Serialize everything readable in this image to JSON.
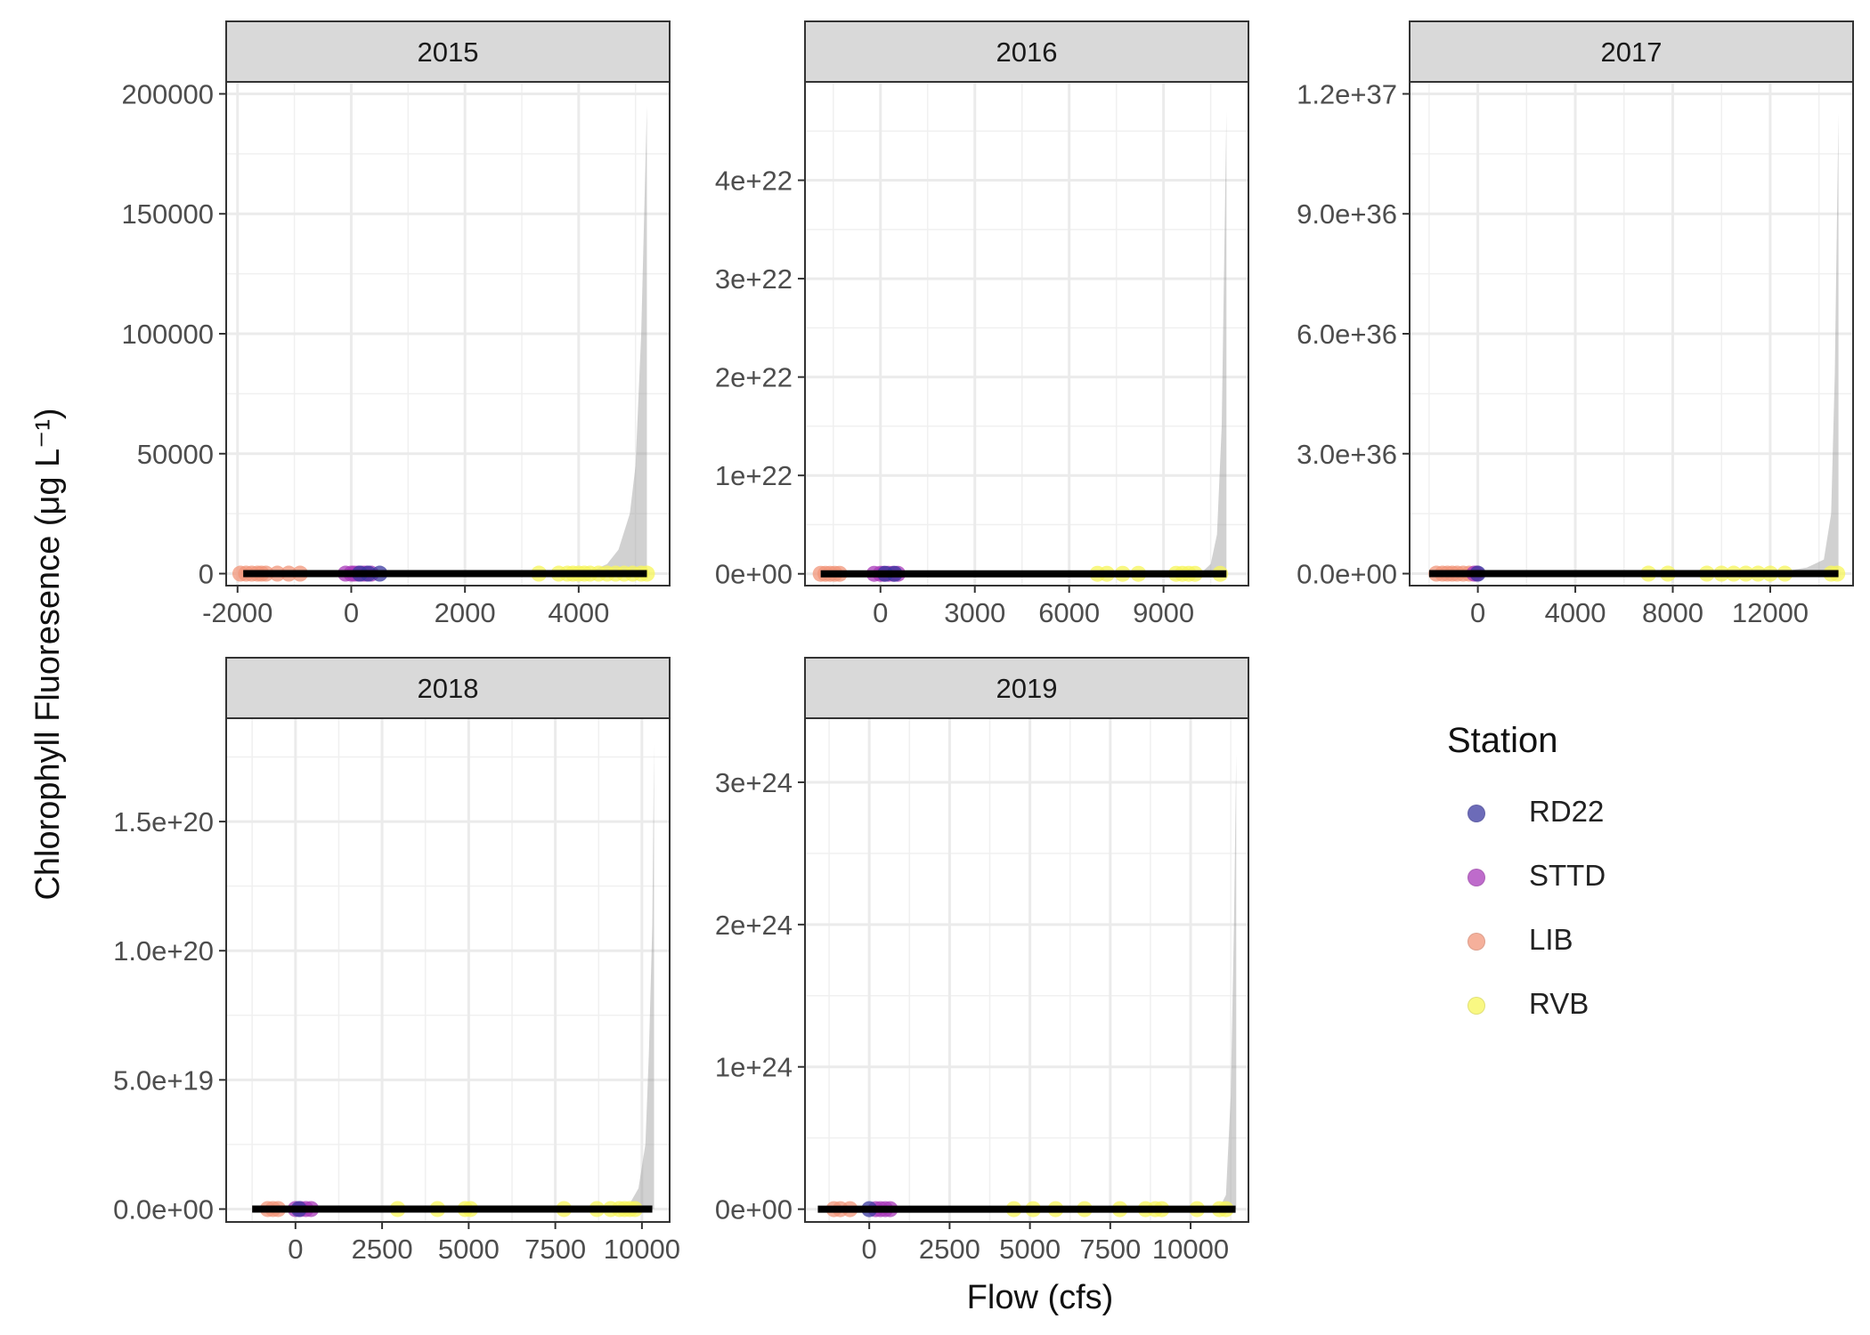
{
  "ylabel": "Chlorophyll Fluoresence (μg L⁻¹)",
  "xlabel": "Flow (cfs)",
  "legend": {
    "title": "Station",
    "items": [
      {
        "label": "RD22",
        "color": "#3b3aa0"
      },
      {
        "label": "STTD",
        "color": "#a83aba"
      },
      {
        "label": "LIB",
        "color": "#f2957a"
      },
      {
        "label": "RVB",
        "color": "#f7f65a"
      }
    ]
  },
  "chart_data": [
    {
      "type": "scatter",
      "title": "2015",
      "xlim": [
        -2200,
        5600
      ],
      "ylim": [
        -5000,
        205000
      ],
      "x_ticks": [
        -2000,
        0,
        2000,
        4000
      ],
      "x_tick_labels": [
        "-2000",
        "0",
        "2000",
        "4000"
      ],
      "y_ticks": [
        0,
        50000,
        100000,
        150000,
        200000
      ],
      "y_tick_labels": [
        "0",
        "50000",
        "100000",
        "150000",
        "200000"
      ],
      "fit": {
        "x_start": -1900,
        "x_end": 5200
      },
      "ribbon": {
        "x_start": 4200,
        "upper": [
          [
            4200,
            800
          ],
          [
            4500,
            4000
          ],
          [
            4700,
            10000
          ],
          [
            4900,
            25000
          ],
          [
            5000,
            45000
          ],
          [
            5100,
            100000
          ],
          [
            5200,
            195000
          ]
        ]
      },
      "points": {
        "RD22": [
          [
            150,
            0
          ],
          [
            300,
            0
          ],
          [
            500,
            0
          ]
        ],
        "STTD": [
          [
            -100,
            0
          ],
          [
            0,
            0
          ],
          [
            50,
            0
          ],
          [
            120,
            0
          ],
          [
            200,
            0
          ],
          [
            260,
            0
          ],
          [
            350,
            0
          ]
        ],
        "LIB": [
          [
            -1950,
            0
          ],
          [
            -1850,
            0
          ],
          [
            -1750,
            0
          ],
          [
            -1650,
            0
          ],
          [
            -1580,
            0
          ],
          [
            -1500,
            0
          ],
          [
            -1300,
            0
          ],
          [
            -1100,
            0
          ],
          [
            -900,
            0
          ]
        ],
        "RVB": [
          [
            3300,
            0
          ],
          [
            3650,
            0
          ],
          [
            3800,
            0
          ],
          [
            3900,
            0
          ],
          [
            4000,
            0
          ],
          [
            4100,
            0
          ],
          [
            4200,
            0
          ],
          [
            4350,
            0
          ],
          [
            4500,
            0
          ],
          [
            4650,
            0
          ],
          [
            4800,
            0
          ],
          [
            4950,
            0
          ],
          [
            5100,
            0
          ],
          [
            5200,
            0
          ]
        ]
      }
    },
    {
      "type": "scatter",
      "title": "2016",
      "xlim": [
        -2400,
        11700
      ],
      "ylim": [
        -1.2e+21,
        5e+22
      ],
      "x_ticks": [
        0,
        3000,
        6000,
        9000
      ],
      "x_tick_labels": [
        "0",
        "3000",
        "6000",
        "9000"
      ],
      "y_ticks": [
        0,
        1e+22,
        2e+22,
        3e+22,
        4e+22
      ],
      "y_tick_labels": [
        "0e+00",
        "1e+22",
        "2e+22",
        "3e+22",
        "4e+22"
      ],
      "fit": {
        "x_start": -1900,
        "x_end": 11000
      },
      "ribbon": {
        "x_start": 10200,
        "upper": [
          [
            10200,
            1e+20
          ],
          [
            10500,
            1e+21
          ],
          [
            10700,
            4e+21
          ],
          [
            10850,
            1.5e+22
          ],
          [
            11000,
            4.7e+22
          ]
        ]
      },
      "points": {
        "RD22": [
          [
            150,
            0
          ],
          [
            450,
            0
          ]
        ],
        "STTD": [
          [
            -200,
            0
          ],
          [
            0,
            0
          ],
          [
            100,
            0
          ],
          [
            250,
            0
          ],
          [
            400,
            0
          ],
          [
            550,
            0
          ]
        ],
        "LIB": [
          [
            -1900,
            0
          ],
          [
            -1750,
            0
          ],
          [
            -1600,
            0
          ],
          [
            -1450,
            0
          ],
          [
            -1300,
            0
          ]
        ],
        "RVB": [
          [
            6900,
            0
          ],
          [
            7200,
            0
          ],
          [
            7700,
            0
          ],
          [
            8200,
            0
          ],
          [
            9400,
            0
          ],
          [
            9600,
            0
          ],
          [
            9800,
            0
          ],
          [
            10000,
            0
          ],
          [
            10800,
            0
          ]
        ]
      }
    },
    {
      "type": "scatter",
      "title": "2017",
      "xlim": [
        -2800,
        15400
      ],
      "ylim": [
        -3e+35,
        1.23e+37
      ],
      "x_ticks": [
        0,
        4000,
        8000,
        12000
      ],
      "x_tick_labels": [
        "0",
        "4000",
        "8000",
        "12000"
      ],
      "y_ticks": [
        0,
        3e+36,
        6e+36,
        9e+36,
        1.2e+37
      ],
      "y_tick_labels": [
        "0.0e+00",
        "3.0e+36",
        "6.0e+36",
        "9.0e+36",
        "1.2e+37"
      ],
      "fit": {
        "x_start": -2000,
        "x_end": 14800
      },
      "ribbon": {
        "x_start": 12500,
        "upper": [
          [
            12500,
            5e+34
          ],
          [
            13500,
            1.5e+35
          ],
          [
            14200,
            3.5e+35
          ],
          [
            14500,
            1.5e+36
          ],
          [
            14650,
            5e+36
          ],
          [
            14800,
            1.15e+37
          ]
        ]
      },
      "points": {
        "RD22": [
          [
            0,
            0
          ]
        ],
        "STTD": [
          [
            -150,
            0
          ],
          [
            -50,
            0
          ]
        ],
        "LIB": [
          [
            -1700,
            0
          ],
          [
            -1450,
            0
          ],
          [
            -1250,
            0
          ],
          [
            -1050,
            0
          ],
          [
            -850,
            0
          ],
          [
            -600,
            0
          ],
          [
            -350,
            0
          ]
        ],
        "RVB": [
          [
            7000,
            0
          ],
          [
            7800,
            0
          ],
          [
            9400,
            0
          ],
          [
            10000,
            0
          ],
          [
            10500,
            0
          ],
          [
            11000,
            0
          ],
          [
            11500,
            0
          ],
          [
            12000,
            0
          ],
          [
            12600,
            0
          ],
          [
            14500,
            0
          ],
          [
            14750,
            0
          ]
        ]
      }
    },
    {
      "type": "scatter",
      "title": "2018",
      "xlim": [
        -2000,
        10800
      ],
      "ylim": [
        -5e+18,
        1.9e+20
      ],
      "x_ticks": [
        0,
        2500,
        5000,
        7500,
        10000
      ],
      "x_tick_labels": [
        "0",
        "2500",
        "5000",
        "7500",
        "10000"
      ],
      "y_ticks": [
        0,
        5e+19,
        1e+20,
        1.5e+20
      ],
      "y_tick_labels": [
        "0.0e+00",
        "5.0e+19",
        "1.0e+20",
        "1.5e+20"
      ],
      "fit": {
        "x_start": -1250,
        "x_end": 10300
      },
      "ribbon": {
        "x_start": 9600,
        "upper": [
          [
            9600,
            1e+18
          ],
          [
            9900,
            8e+18
          ],
          [
            10100,
            2.5e+19
          ],
          [
            10200,
            6e+19
          ],
          [
            10300,
            1.1e+20
          ],
          [
            10350,
            1.8e+20
          ]
        ]
      },
      "points": {
        "RD22": [
          [
            100,
            0
          ]
        ],
        "STTD": [
          [
            0,
            0
          ],
          [
            150,
            0
          ],
          [
            300,
            0
          ],
          [
            450,
            0
          ]
        ],
        "LIB": [
          [
            -800,
            0
          ],
          [
            -650,
            0
          ],
          [
            -500,
            0
          ]
        ],
        "RVB": [
          [
            2950,
            0
          ],
          [
            4100,
            0
          ],
          [
            4900,
            0
          ],
          [
            5050,
            0
          ],
          [
            7750,
            0
          ],
          [
            8700,
            0
          ],
          [
            9100,
            0
          ],
          [
            9350,
            0
          ],
          [
            9500,
            0
          ],
          [
            9650,
            0
          ],
          [
            9800,
            0
          ]
        ]
      }
    },
    {
      "type": "scatter",
      "title": "2019",
      "xlim": [
        -2000,
        11800
      ],
      "ylim": [
        -9e+22,
        3.45e+24
      ],
      "x_ticks": [
        0,
        2500,
        5000,
        7500,
        10000
      ],
      "x_tick_labels": [
        "0",
        "2500",
        "5000",
        "7500",
        "10000"
      ],
      "y_ticks": [
        0,
        1e+24,
        2e+24,
        3e+24
      ],
      "y_tick_labels": [
        "0e+00",
        "1e+24",
        "2e+24",
        "3e+24"
      ],
      "fit": {
        "x_start": -1600,
        "x_end": 11400
      },
      "ribbon": {
        "x_start": 10900,
        "upper": [
          [
            10900,
            1e+22
          ],
          [
            11100,
            1e+23
          ],
          [
            11250,
            8e+23
          ],
          [
            11350,
            2e+24
          ],
          [
            11420,
            3.2e+24
          ]
        ]
      },
      "points": {
        "RD22": [
          [
            0,
            0
          ]
        ],
        "STTD": [
          [
            200,
            0
          ],
          [
            350,
            0
          ],
          [
            500,
            0
          ],
          [
            650,
            0
          ]
        ],
        "LIB": [
          [
            -1100,
            0
          ],
          [
            -900,
            0
          ],
          [
            -600,
            0
          ]
        ],
        "RVB": [
          [
            4500,
            0
          ],
          [
            5100,
            0
          ],
          [
            5800,
            0
          ],
          [
            6700,
            0
          ],
          [
            7800,
            0
          ],
          [
            8600,
            0
          ],
          [
            8900,
            0
          ],
          [
            9100,
            0
          ],
          [
            10200,
            0
          ],
          [
            10900,
            0
          ],
          [
            11100,
            0
          ]
        ]
      }
    }
  ]
}
